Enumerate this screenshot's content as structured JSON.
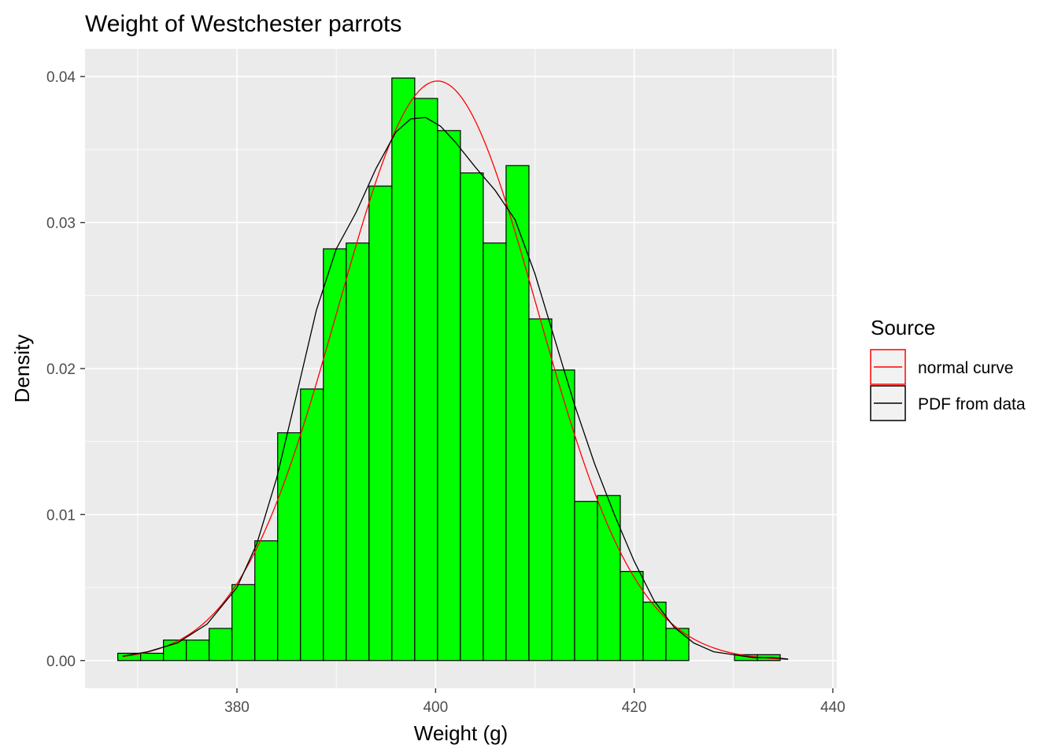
{
  "chart_data": {
    "type": "histogram",
    "title": "Weight of Westchester parrots",
    "xlabel": "Weight (g)",
    "ylabel": "Density",
    "xlim": [
      364.7,
      440.4
    ],
    "ylim": [
      -0.0019,
      0.0419
    ],
    "x_ticks": [
      380,
      400,
      420,
      440
    ],
    "x_minor_ticks": [
      370,
      390,
      410,
      430
    ],
    "y_ticks": [
      0.0,
      0.01,
      0.02,
      0.03,
      0.04
    ],
    "y_tick_labels": [
      "0.00",
      "0.01",
      "0.02",
      "0.03",
      "0.04"
    ],
    "y_minor_ticks": [
      0.005,
      0.015,
      0.025,
      0.035
    ],
    "bin_start": 368.0,
    "bin_width": 2.3,
    "densities": [
      0.0005,
      0.0005,
      0.0014,
      0.0014,
      0.0022,
      0.0052,
      0.0082,
      0.0156,
      0.0186,
      0.0282,
      0.0286,
      0.0325,
      0.0399,
      0.0385,
      0.0363,
      0.0334,
      0.0286,
      0.0339,
      0.0234,
      0.0199,
      0.0109,
      0.0113,
      0.0061,
      0.004,
      0.0022,
      0.0,
      0.0,
      0.0004,
      0.0004
    ],
    "bar_color": "#00ff00",
    "bar_outline": "#000000",
    "panel_background": "#ebebeb",
    "series": [
      {
        "name": "normal curve",
        "color": "#ff0000",
        "mean": 400.2,
        "sd": 10.05,
        "x_range": [
          368.5,
          435.5
        ]
      },
      {
        "name": "PDF from data",
        "color": "#000000",
        "x": [
          368.5,
          371,
          374,
          377,
          380,
          382,
          384,
          386,
          388,
          390,
          392,
          394,
          396,
          397.5,
          399,
          400.5,
          402,
          404,
          406,
          408,
          410,
          412,
          414,
          416,
          418,
          420,
          422,
          424,
          426,
          428,
          430,
          432,
          434,
          435.5
        ],
        "y": [
          0.0003,
          0.0006,
          0.0012,
          0.0025,
          0.005,
          0.008,
          0.0125,
          0.0182,
          0.024,
          0.0282,
          0.0307,
          0.0337,
          0.0362,
          0.0371,
          0.0372,
          0.0366,
          0.0355,
          0.0338,
          0.0322,
          0.0302,
          0.0265,
          0.022,
          0.0175,
          0.0135,
          0.01,
          0.0068,
          0.0041,
          0.0023,
          0.0012,
          0.0006,
          0.0004,
          0.0002,
          0.0002,
          0.0001
        ]
      }
    ],
    "legend": {
      "title": "Source",
      "position": "right",
      "entries": [
        "normal curve",
        "PDF from data"
      ]
    }
  }
}
